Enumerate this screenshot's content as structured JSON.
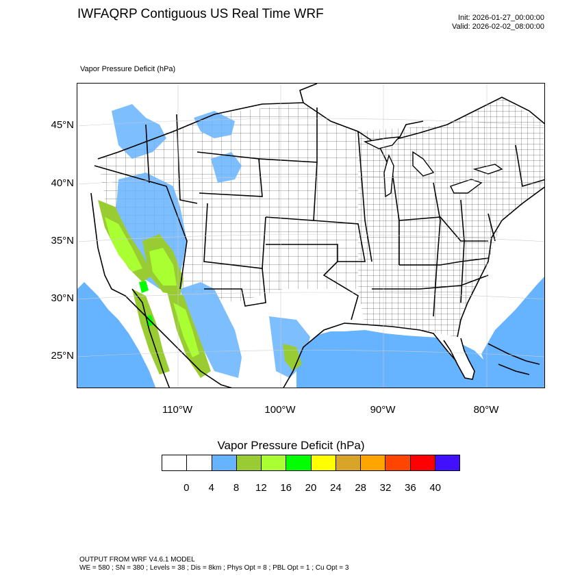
{
  "header": {
    "title": "IWFAQRP Contiguous US Real Time WRF",
    "init": "Init: 2026-01-27_00:00:00",
    "valid": "Valid: 2026-02-02_08:00:00"
  },
  "map": {
    "field_label": "Vapor Pressure Deficit   (hPa)",
    "lat_labels": [
      "45°N",
      "40°N",
      "35°N",
      "30°N",
      "25°N"
    ],
    "lon_labels": [
      "110°W",
      "100°W",
      "90°W",
      "80°W"
    ],
    "colors": {
      "ocean_fill": "#66b3ff",
      "level_8_12": "#99cc33",
      "level_12_16": "#aaff33",
      "level_16_20": "#00ff00"
    }
  },
  "colorbar": {
    "title": "Vapor Pressure Deficit  (hPa)",
    "ticks": [
      "0",
      "4",
      "8",
      "12",
      "16",
      "20",
      "24",
      "28",
      "32",
      "36",
      "40"
    ],
    "colors": [
      "#ffffff",
      "#ffffff",
      "#66b3ff",
      "#99cc33",
      "#aaff33",
      "#00ff00",
      "#ffff00",
      "#d9a528",
      "#ffa500",
      "#ff4500",
      "#ff0000",
      "#4010ff"
    ]
  },
  "footer": {
    "line1": "OUTPUT FROM WRF V4.6.1 MODEL",
    "line2": "WE = 580 ; SN = 380 ; Levels = 38 ; Dis = 8km ; Phys Opt = 8 ; PBL Opt = 1 ; Cu Opt = 3"
  }
}
